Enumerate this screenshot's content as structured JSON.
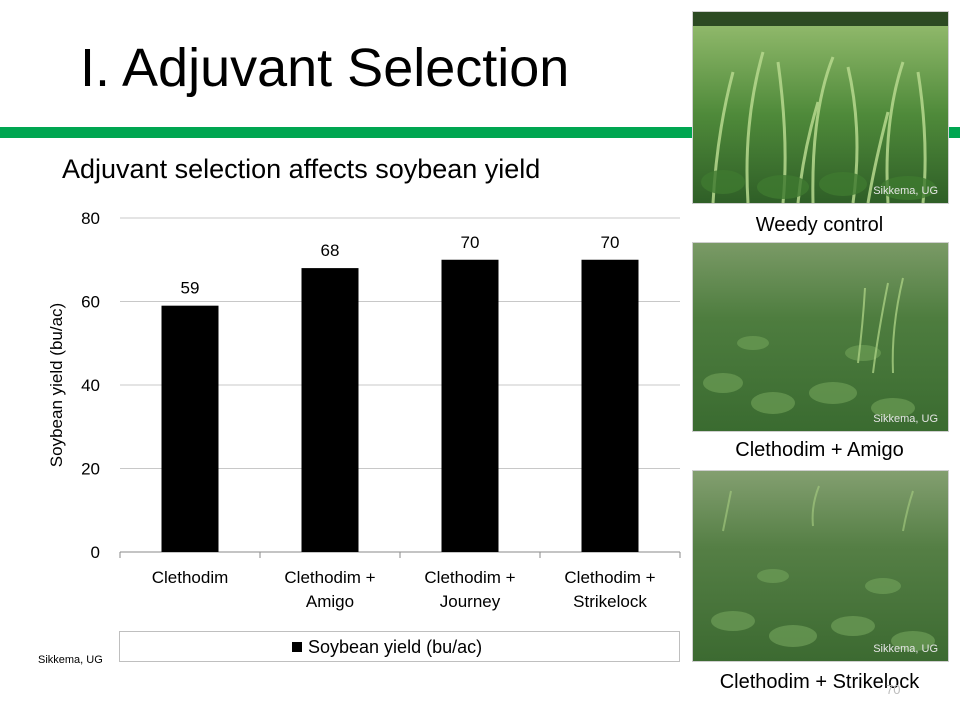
{
  "slide": {
    "title": "I. Adjuvant Selection",
    "subtitle": "Adjuvant selection affects soybean yield",
    "credit": "Sikkema, UG",
    "slide_number": "70"
  },
  "colors": {
    "accent_bar": "#00a651",
    "bars": "#000000"
  },
  "photos": [
    {
      "caption": "Weedy control",
      "credit": "Sikkema, UG"
    },
    {
      "caption": "Clethodim + Amigo",
      "credit": "Sikkema, UG"
    },
    {
      "caption": "Clethodim + Strikelock",
      "credit": "Sikkema, UG"
    }
  ],
  "chart_data": {
    "type": "bar",
    "categories": [
      "Clethodim",
      "Clethodim + Amigo",
      "Clethodim + Journey",
      "Clethodim + Strikelock"
    ],
    "category_lines": [
      [
        "Clethodim"
      ],
      [
        "Clethodim +",
        "Amigo"
      ],
      [
        "Clethodim +",
        "Journey"
      ],
      [
        "Clethodim +",
        "Strikelock"
      ]
    ],
    "series": [
      {
        "name": "Soybean yield (bu/ac)",
        "values": [
          59,
          68,
          70,
          70
        ]
      }
    ],
    "ylabel": "Soybean yield (bu/ac)",
    "ylim": [
      0,
      80
    ],
    "yticks": [
      0,
      20,
      40,
      60,
      80
    ],
    "grid": true,
    "legend": "bottom"
  }
}
